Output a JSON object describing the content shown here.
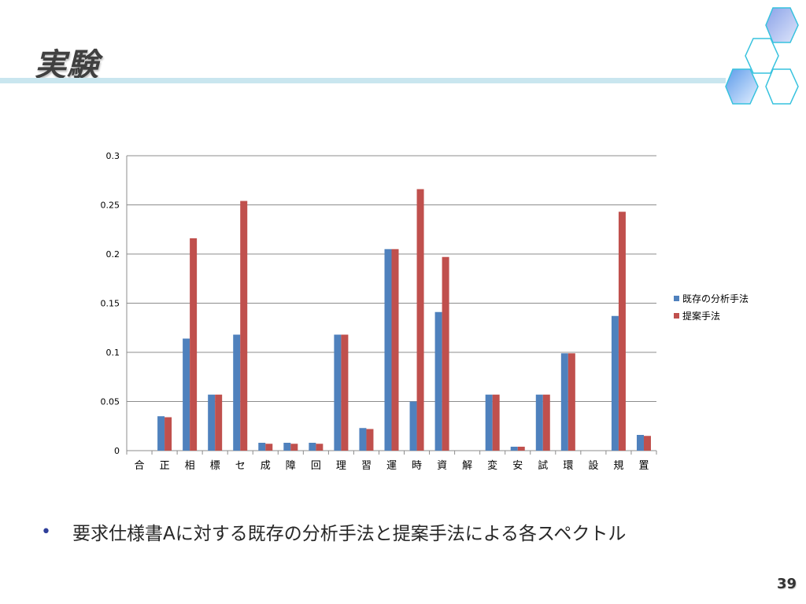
{
  "slide": {
    "title": "実験",
    "bullet": "要求仕様書Aに対する既存の分析手法と提案手法による各スペクトル",
    "page_number": "39"
  },
  "chart_data": {
    "type": "bar",
    "categories": [
      "合",
      "正",
      "相",
      "標",
      "セ",
      "成",
      "障",
      "回",
      "理",
      "習",
      "運",
      "時",
      "資",
      "解",
      "変",
      "安",
      "試",
      "環",
      "設",
      "規",
      "置"
    ],
    "series": [
      {
        "name": "既存の分析手法",
        "color": "#4f81bd",
        "values": [
          0,
          0.035,
          0.114,
          0.057,
          0.118,
          0.008,
          0.008,
          0.008,
          0.118,
          0.023,
          0.205,
          0.05,
          0.141,
          0,
          0.057,
          0.004,
          0.057,
          0.099,
          0,
          0.137,
          0.016
        ]
      },
      {
        "name": "提案手法",
        "color": "#c0504d",
        "values": [
          0,
          0.034,
          0.216,
          0.057,
          0.254,
          0.007,
          0.007,
          0.007,
          0.118,
          0.022,
          0.205,
          0.266,
          0.197,
          0,
          0.057,
          0.004,
          0.057,
          0.099,
          0,
          0.243,
          0.015
        ]
      }
    ],
    "y_ticks": [
      "0",
      "0.05",
      "0.1",
      "0.15",
      "0.2",
      "0.25",
      "0.3"
    ],
    "ylim": [
      0,
      0.3
    ],
    "grid": true,
    "legend": "right"
  }
}
